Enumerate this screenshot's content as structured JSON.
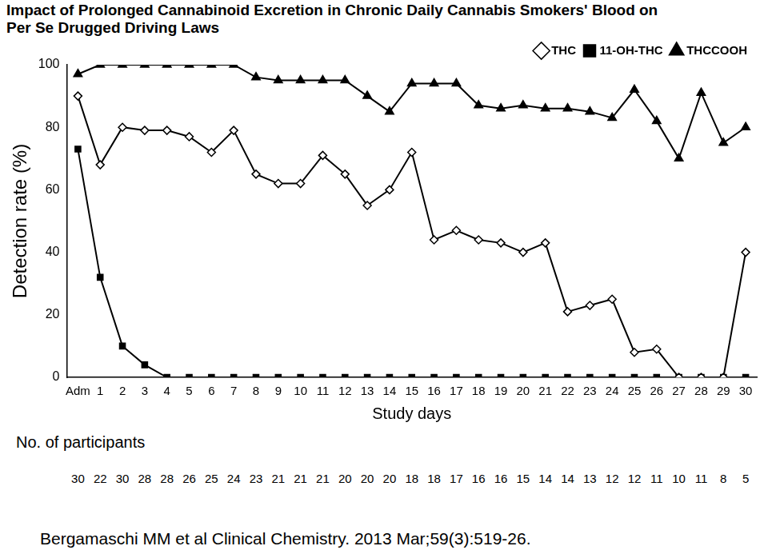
{
  "chart_data": {
    "type": "line",
    "title": "Impact of Prolonged Cannabinoid Excretion in Chronic Daily Cannabis Smokers' Blood on Per Se Drugged Driving Laws",
    "x_label": "Study days",
    "y_label": "Detection rate (%)",
    "categories": [
      "Adm",
      "1",
      "2",
      "3",
      "4",
      "5",
      "6",
      "7",
      "8",
      "9",
      "10",
      "11",
      "12",
      "13",
      "14",
      "15",
      "16",
      "17",
      "18",
      "19",
      "20",
      "21",
      "22",
      "23",
      "24",
      "25",
      "26",
      "27",
      "28",
      "29",
      "30"
    ],
    "series": [
      {
        "name": "THC",
        "color": "#000000",
        "marker": "diamond_open",
        "line_style": "solid",
        "values": [
          90,
          68,
          80,
          79,
          79,
          77,
          72,
          79,
          65,
          62,
          62,
          71,
          65,
          55,
          60,
          72,
          44,
          47,
          44,
          43,
          40,
          43,
          21,
          23,
          25,
          8,
          9,
          0,
          0,
          0,
          40
        ]
      },
      {
        "name": "11-OH-THC",
        "color": "#000000",
        "marker": "square",
        "line_style": "solid",
        "values": [
          73,
          32,
          10,
          4,
          0,
          0,
          0,
          0,
          0,
          0,
          0,
          0,
          0,
          0,
          0,
          0,
          0,
          0,
          0,
          0,
          0,
          0,
          0,
          0,
          0,
          0,
          0,
          0,
          0,
          0,
          0
        ]
      },
      {
        "name": "THCCOOH",
        "color": "#000000",
        "marker": "triangle",
        "line_style": "solid",
        "values": [
          97,
          100,
          100,
          100,
          100,
          100,
          100,
          100,
          96,
          95,
          95,
          95,
          95,
          90,
          85,
          94,
          94,
          94,
          87,
          86,
          87,
          86,
          86,
          85,
          83,
          92,
          82,
          70,
          91,
          75,
          80
        ]
      }
    ],
    "ylim": [
      0,
      100
    ],
    "yticks": [
      0,
      20,
      40,
      60,
      80,
      100
    ],
    "grid": false,
    "legend": "top",
    "participants_label": "No. of participants",
    "participants": [
      30,
      22,
      30,
      28,
      28,
      26,
      25,
      24,
      23,
      21,
      21,
      21,
      20,
      20,
      20,
      18,
      18,
      17,
      16,
      16,
      15,
      14,
      14,
      13,
      12,
      12,
      11,
      10,
      11,
      8,
      5
    ],
    "source": "Bergamaschi MM et al Clinical Chemistry. 2013 Mar;59(3):519-26."
  }
}
